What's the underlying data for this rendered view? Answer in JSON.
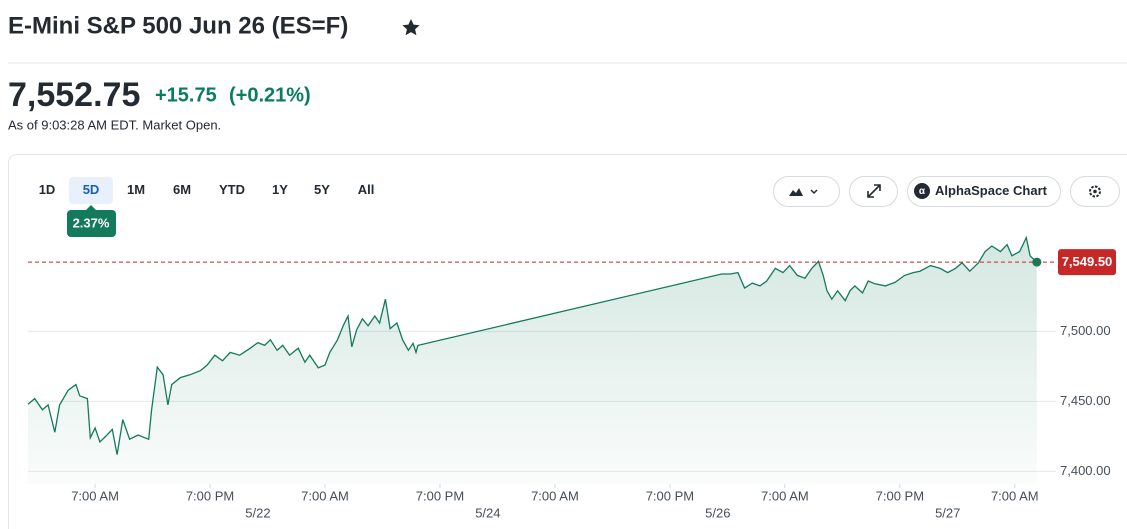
{
  "header": {
    "title": "E-Mini S&P 500 Jun 26 (ES=F)",
    "price": "7,552.75",
    "change": "+15.75",
    "change_percent": "(+0.21%)",
    "timestamp": "As of 9:03:28 AM EDT. Market Open."
  },
  "toolbar": {
    "ranges": [
      "1D",
      "5D",
      "1M",
      "6M",
      "YTD",
      "1Y",
      "5Y",
      "All"
    ],
    "active_range": "5D",
    "range_change": "2.37%",
    "chart_button": "AlphaSpace Chart"
  },
  "chart_data": {
    "type": "line",
    "color": "#137a5b",
    "xlim": [
      0,
      107.3
    ],
    "ylim": [
      7391,
      7576
    ],
    "yticks": [
      {
        "value": 7400,
        "label": "7,400.00"
      },
      {
        "value": 7450,
        "label": "7,450.00"
      },
      {
        "value": 7500,
        "label": "7,500.00"
      }
    ],
    "xticks": [
      {
        "value": 7,
        "label": "7:00 AM"
      },
      {
        "value": 19,
        "label": "7:00 PM"
      },
      {
        "value": 31,
        "label": "7:00 AM"
      },
      {
        "value": 43,
        "label": "7:00 PM"
      },
      {
        "value": 55,
        "label": "7:00 AM"
      },
      {
        "value": 67,
        "label": "7:00 PM"
      },
      {
        "value": 79,
        "label": "7:00 AM"
      },
      {
        "value": 91,
        "label": "7:00 PM"
      },
      {
        "value": 103,
        "label": "7:00 AM"
      }
    ],
    "date_ticks": [
      {
        "value": 24,
        "label": "5/22"
      },
      {
        "value": 48,
        "label": "5/24"
      },
      {
        "value": 72,
        "label": "5/26"
      },
      {
        "value": 96,
        "label": "5/27"
      }
    ],
    "grid": true,
    "reference": {
      "value": 7549.5,
      "label": "7,549.50",
      "color": "#c62828"
    },
    "x": [
      0,
      0.7,
      1.5,
      2.1,
      2.8,
      3.3,
      4.2,
      5.0,
      5.4,
      6.2,
      6.5,
      7.0,
      7.5,
      8.1,
      8.8,
      9.3,
      9.9,
      10.6,
      11.5,
      12.2,
      12.6,
      12.9,
      13.5,
      14.1,
      14.6,
      15.0,
      15.9,
      16.9,
      18.0,
      18.7,
      19.5,
      20.3,
      21.1,
      22.1,
      23.2,
      24.0,
      24.7,
      25.3,
      26.0,
      26.6,
      27.3,
      28.2,
      28.9,
      29.4,
      30.3,
      31.0,
      31.5,
      32.3,
      32.9,
      33.4,
      33.8,
      34.3,
      34.9,
      35.5,
      36.2,
      36.7,
      37.3,
      37.8,
      38.5,
      39.1,
      39.7,
      40.2,
      40.5,
      40.7,
      72.4,
      73.3,
      74.1,
      74.8,
      75.6,
      76.4,
      77.1,
      78.0,
      78.8,
      79.5,
      80.3,
      81.1,
      81.8,
      82.5,
      83.0,
      83.4,
      83.9,
      84.5,
      85.3,
      85.8,
      86.3,
      87.1,
      87.7,
      88.4,
      89.5,
      90.5,
      91.5,
      92.4,
      93.1,
      94.2,
      95.2,
      96.0,
      96.8,
      97.5,
      98.3,
      99.2,
      99.9,
      100.6,
      101.5,
      102.2,
      102.7,
      103.5,
      104.2,
      104.6,
      105.3
    ],
    "values": [
      7448,
      7452,
      7444,
      7447.5,
      7428,
      7447.5,
      7458,
      7462,
      7454,
      7452,
      7424,
      7431,
      7421,
      7425,
      7430,
      7412,
      7437,
      7423,
      7426,
      7424,
      7423,
      7444,
      7474.5,
      7469,
      7447.5,
      7462,
      7467,
      7469,
      7472,
      7476,
      7483,
      7479,
      7485,
      7483,
      7488,
      7492,
      7490,
      7494,
      7486.5,
      7490,
      7483,
      7488,
      7478,
      7483,
      7474,
      7476,
      7485,
      7494,
      7504,
      7511,
      7489,
      7501,
      7509,
      7504,
      7511,
      7506,
      7523,
      7502,
      7506,
      7494,
      7486.5,
      7491.5,
      7485,
      7490,
      7541,
      7541,
      7542,
      7531,
      7534.5,
      7532.5,
      7536,
      7545,
      7542,
      7547,
      7540,
      7538,
      7545,
      7550,
      7540,
      7529,
      7523,
      7529,
      7522,
      7529,
      7532.5,
      7527.5,
      7536,
      7534,
      7532.5,
      7535,
      7540,
      7542,
      7543,
      7547,
      7545,
      7542,
      7545,
      7549,
      7543,
      7549,
      7557,
      7561,
      7557,
      7562,
      7554,
      7557,
      7567,
      7554,
      7549.5
    ]
  }
}
